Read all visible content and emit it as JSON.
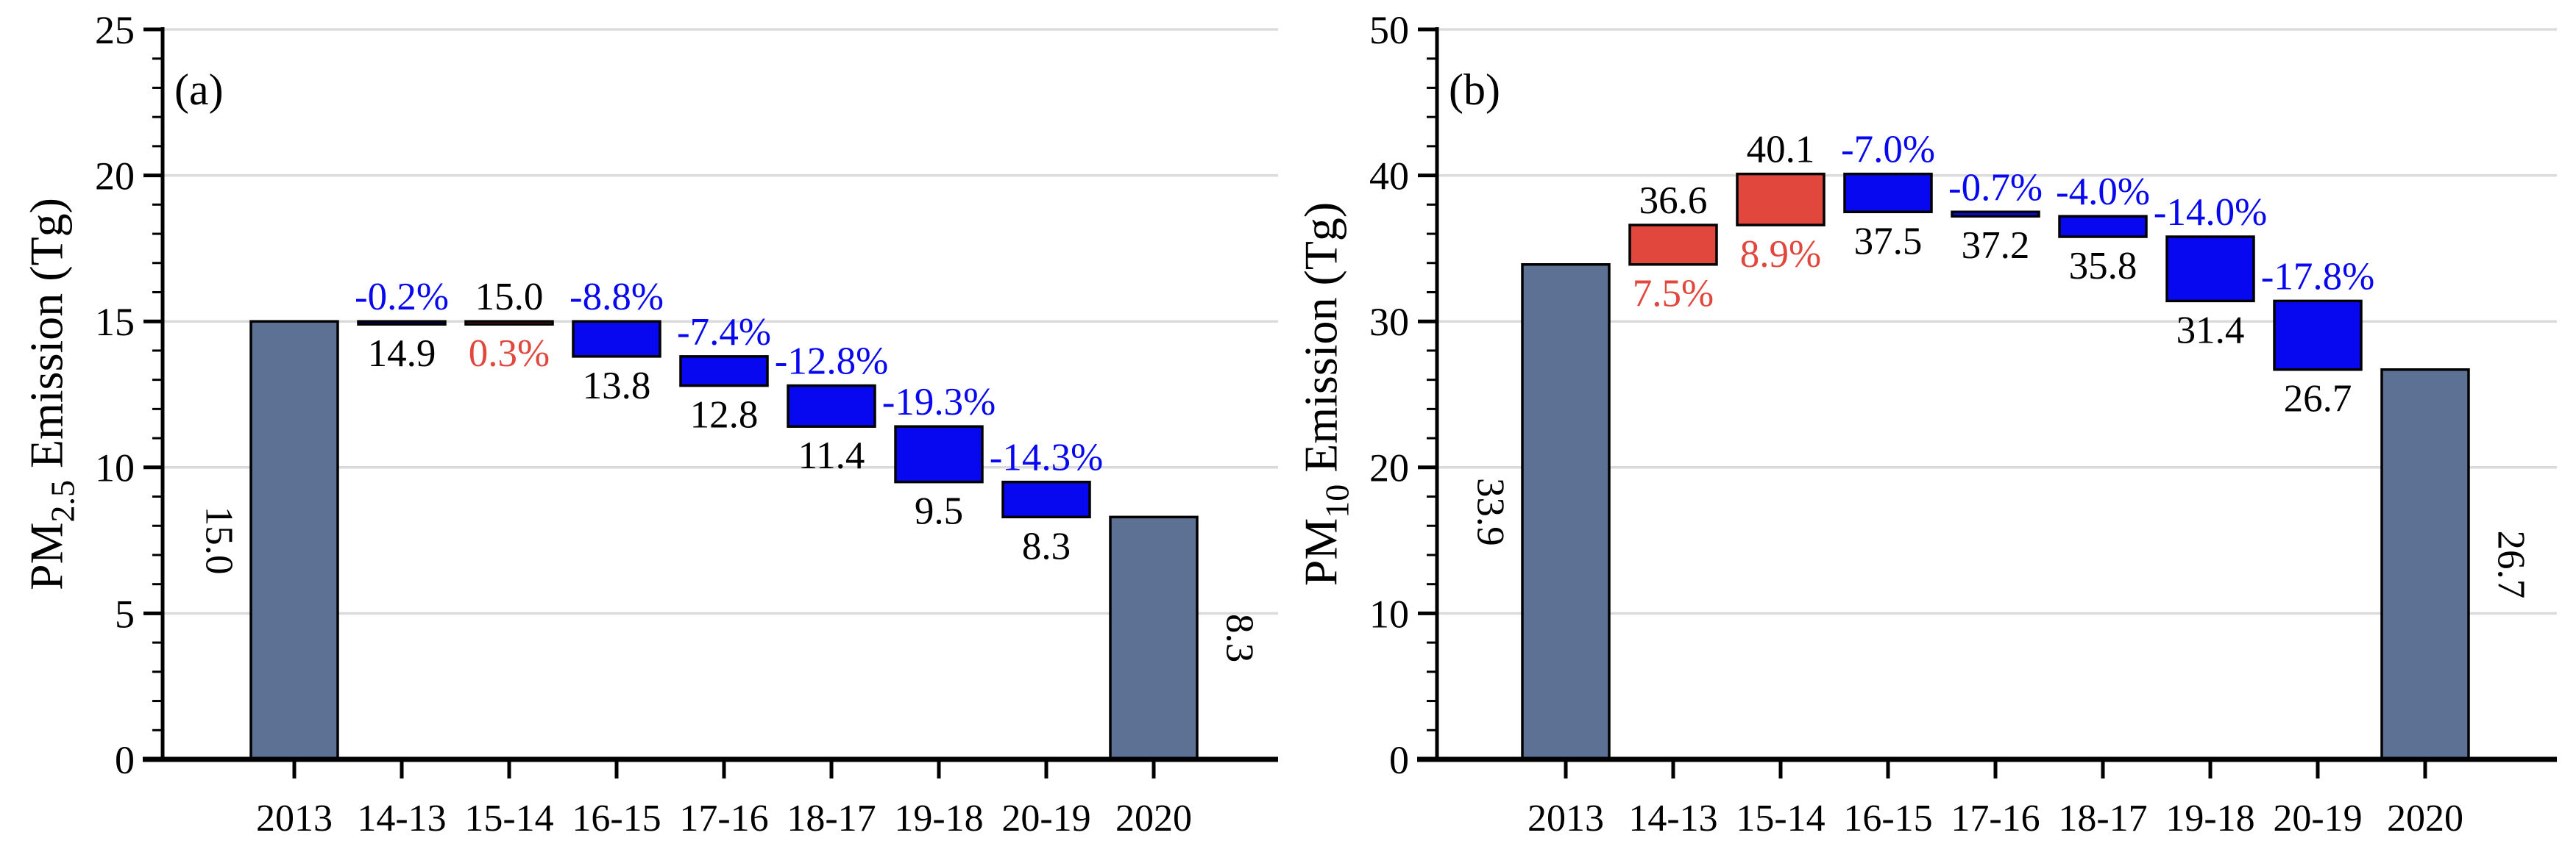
{
  "palette": {
    "total_bar": "#5C7194",
    "decrease_bar": "#0808F0",
    "increase_bar": "#E2473D",
    "decrease_text": "#0808F0",
    "increase_text": "#E2473D",
    "black_text": "#000000",
    "grid": "#DBDBDB",
    "axis": "#000000",
    "background": "#ffffff"
  },
  "chart_data": [
    {
      "type": "bar",
      "subtype": "waterfall",
      "panel_letter": "(a)",
      "ylabel": {
        "pre": "PM",
        "sub": "2.5",
        "post": " Emission (Tg)"
      },
      "ylim": [
        0,
        25
      ],
      "y_major_step": 5,
      "y_minor_step": 1,
      "ytick_labels": [
        "0",
        "5",
        "10",
        "15",
        "20",
        "25"
      ],
      "grid": "horizontal-majors",
      "legend": "none",
      "categories": [
        "2013",
        "14-13",
        "15-14",
        "16-15",
        "17-16",
        "18-17",
        "19-18",
        "20-19",
        "2020"
      ],
      "bars": [
        {
          "category": "2013",
          "start": 0,
          "end": 15.0,
          "kind": "total",
          "side_label": "15.0",
          "side": "left"
        },
        {
          "category": "14-13",
          "start": 15.0,
          "end": 14.9,
          "kind": "decrease",
          "label_above": "-0.2%",
          "above_color": "decrease",
          "label_below": "14.9",
          "below_color": "black"
        },
        {
          "category": "15-14",
          "start": 14.9,
          "end": 15.0,
          "kind": "increase",
          "label_above": "15.0",
          "above_color": "black",
          "label_below": "0.3%",
          "below_color": "increase"
        },
        {
          "category": "16-15",
          "start": 15.0,
          "end": 13.8,
          "kind": "decrease",
          "label_above": "-8.8%",
          "above_color": "decrease",
          "label_below": "13.8",
          "below_color": "black"
        },
        {
          "category": "17-16",
          "start": 13.8,
          "end": 12.8,
          "kind": "decrease",
          "label_above": "-7.4%",
          "above_color": "decrease",
          "label_below": "12.8",
          "below_color": "black"
        },
        {
          "category": "18-17",
          "start": 12.8,
          "end": 11.4,
          "kind": "decrease",
          "label_above": "-12.8%",
          "above_color": "decrease",
          "label_below": "11.4",
          "below_color": "black"
        },
        {
          "category": "19-18",
          "start": 11.4,
          "end": 9.5,
          "kind": "decrease",
          "label_above": "-19.3%",
          "above_color": "decrease",
          "label_below": "9.5",
          "below_color": "black"
        },
        {
          "category": "20-19",
          "start": 9.5,
          "end": 8.3,
          "kind": "decrease",
          "label_above": "-14.3%",
          "above_color": "decrease",
          "label_below": "8.3",
          "below_color": "black"
        },
        {
          "category": "2020",
          "start": 0,
          "end": 8.3,
          "kind": "total",
          "side_label": "8.3",
          "side": "right"
        }
      ]
    },
    {
      "type": "bar",
      "subtype": "waterfall",
      "panel_letter": "(b)",
      "ylabel": {
        "pre": "PM",
        "sub": "10",
        "post": " Emission (Tg)"
      },
      "ylim": [
        0,
        50
      ],
      "y_major_step": 10,
      "y_minor_step": 2,
      "ytick_labels": [
        "0",
        "10",
        "20",
        "30",
        "40",
        "50"
      ],
      "grid": "horizontal-majors",
      "legend": "none",
      "categories": [
        "2013",
        "14-13",
        "15-14",
        "16-15",
        "17-16",
        "18-17",
        "19-18",
        "20-19",
        "2020"
      ],
      "bars": [
        {
          "category": "2013",
          "start": 0,
          "end": 33.9,
          "kind": "total",
          "side_label": "33.9",
          "side": "left"
        },
        {
          "category": "14-13",
          "start": 33.9,
          "end": 36.6,
          "kind": "increase",
          "label_above": "36.6",
          "above_color": "black",
          "label_below": "7.5%",
          "below_color": "increase"
        },
        {
          "category": "15-14",
          "start": 36.6,
          "end": 40.1,
          "kind": "increase",
          "label_above": "40.1",
          "above_color": "black",
          "label_below": "8.9%",
          "below_color": "increase"
        },
        {
          "category": "16-15",
          "start": 40.1,
          "end": 37.5,
          "kind": "decrease",
          "label_above": "-7.0%",
          "above_color": "decrease",
          "label_below": "37.5",
          "below_color": "black"
        },
        {
          "category": "17-16",
          "start": 37.5,
          "end": 37.2,
          "kind": "decrease",
          "label_above": "-0.7%",
          "above_color": "decrease",
          "label_below": "37.2",
          "below_color": "black"
        },
        {
          "category": "18-17",
          "start": 37.2,
          "end": 35.8,
          "kind": "decrease",
          "label_above": "-4.0%",
          "above_color": "decrease",
          "label_below": "35.8",
          "below_color": "black"
        },
        {
          "category": "19-18",
          "start": 35.8,
          "end": 31.4,
          "kind": "decrease",
          "label_above": "-14.0%",
          "above_color": "decrease",
          "label_below": "31.4",
          "below_color": "black"
        },
        {
          "category": "20-19",
          "start": 31.4,
          "end": 26.7,
          "kind": "decrease",
          "label_above": "-17.8%",
          "above_color": "decrease",
          "label_below": "26.7",
          "below_color": "black"
        },
        {
          "category": "2020",
          "start": 0,
          "end": 26.7,
          "kind": "total",
          "side_label": "26.7",
          "side": "right"
        }
      ]
    }
  ]
}
